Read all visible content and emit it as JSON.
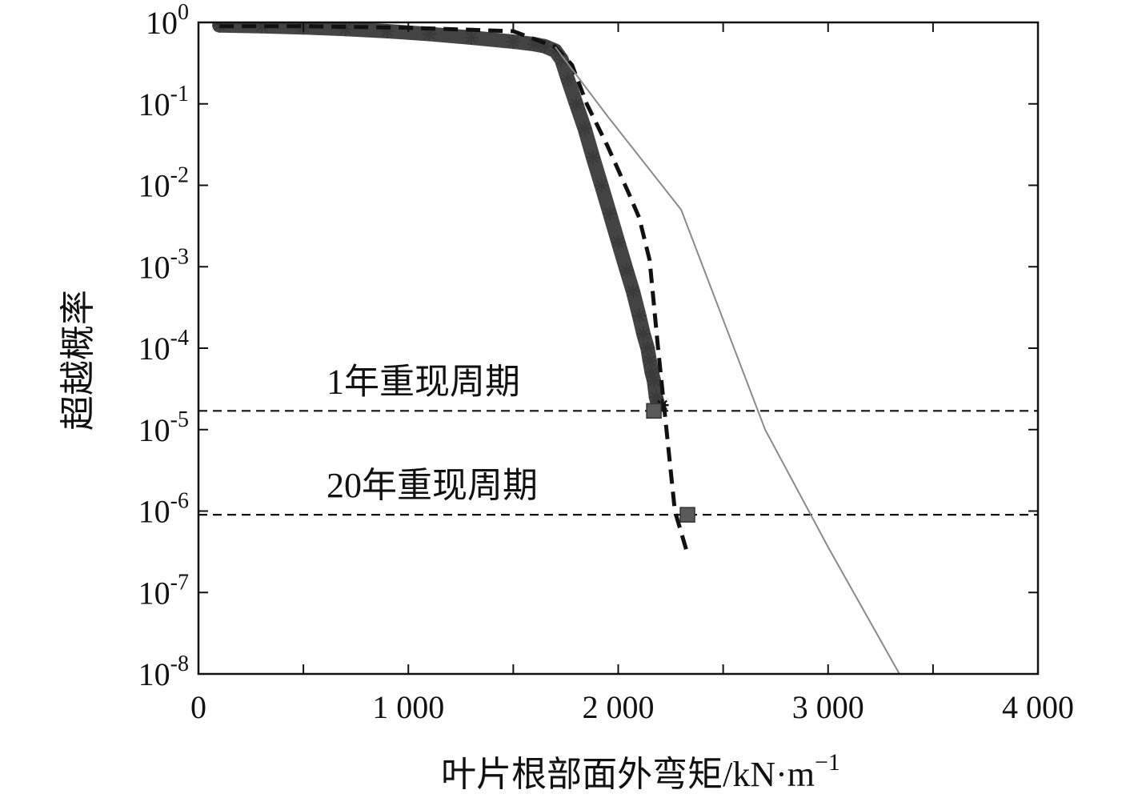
{
  "chart_data": {
    "type": "scatter",
    "xlabel": "叶片根部面外弯矩/kN·m",
    "xlabel_sup": "−1",
    "ylabel": "超越概率",
    "x_scale": "linear",
    "y_scale": "log",
    "xlim": [
      0,
      4000
    ],
    "ylim": [
      1e-08,
      1
    ],
    "x_ticks": [
      {
        "value": 0,
        "label": "0"
      },
      {
        "value": 1000,
        "label": "1 000"
      },
      {
        "value": 2000,
        "label": "2 000"
      },
      {
        "value": 3000,
        "label": "3 000"
      },
      {
        "value": 4000,
        "label": "4 000"
      }
    ],
    "x_minor_ticks": [
      500,
      1500,
      2500,
      3500
    ],
    "y_ticks": [
      {
        "value": 1,
        "base": "10",
        "exp": "0"
      },
      {
        "value": 0.1,
        "base": "10",
        "exp": "-1"
      },
      {
        "value": 0.01,
        "base": "10",
        "exp": "-2"
      },
      {
        "value": 0.001,
        "base": "10",
        "exp": "-3"
      },
      {
        "value": 0.0001,
        "base": "10",
        "exp": "-4"
      },
      {
        "value": 1e-05,
        "base": "10",
        "exp": "-5"
      },
      {
        "value": 1e-06,
        "base": "10",
        "exp": "-6"
      },
      {
        "value": 1e-07,
        "base": "10",
        "exp": "-7"
      },
      {
        "value": 1e-08,
        "base": "10",
        "exp": "-8"
      }
    ],
    "grid": false,
    "series": [
      {
        "style": "scatter-star",
        "color": "#3a3a3a",
        "x": [
          100,
          300,
          500,
          700,
          900,
          1100,
          1300,
          1500,
          1600,
          1650,
          1700,
          1730,
          1760,
          1800,
          1840,
          1880,
          1920,
          1960,
          2000,
          2040,
          2070,
          2100,
          2120,
          2140,
          2150,
          2160,
          2170,
          2180,
          2190
        ],
        "y": [
          0.92,
          0.9,
          0.87,
          0.83,
          0.78,
          0.72,
          0.65,
          0.58,
          0.54,
          0.51,
          0.45,
          0.35,
          0.2,
          0.1,
          0.05,
          0.022,
          0.01,
          0.0045,
          0.002,
          0.0009,
          0.0005,
          0.00025,
          0.00015,
          0.0001,
          7e-05,
          5e-05,
          4e-05,
          2.5e-05,
          2e-05
        ]
      },
      {
        "style": "dashed-thick",
        "color": "#111111",
        "x": [
          100,
          500,
          1000,
          1500,
          1700,
          1780,
          1850,
          1950,
          2050,
          2100,
          2150,
          2190,
          2230,
          2270,
          2330
        ],
        "y": [
          0.9,
          0.9,
          0.86,
          0.78,
          0.5,
          0.3,
          0.1,
          0.03,
          0.008,
          0.004,
          0.0012,
          0.0001,
          1e-05,
          1e-06,
          3e-07
        ]
      },
      {
        "style": "line-thin",
        "color": "#8a8a8a",
        "x": [
          1700,
          1950,
          2300,
          2700,
          3000,
          3340
        ],
        "y": [
          0.5,
          0.07,
          0.005,
          1e-05,
          3.6e-07,
          1e-08
        ]
      }
    ],
    "return_levels": [
      {
        "label": "1年重现周期",
        "y": 1.7e-05,
        "marker_x": 2170
      },
      {
        "label": "20年重现周期",
        "y": 9e-07,
        "marker_x": 2330
      }
    ],
    "extra_markers": [
      {
        "x": 2210,
        "y": 2e-05
      }
    ]
  }
}
